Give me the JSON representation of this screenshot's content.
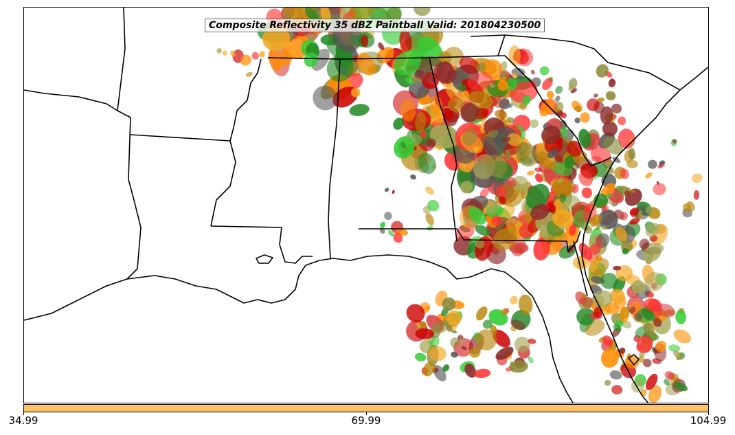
{
  "title": "Composite Reflectivity 35 dBZ Paintball Valid: 201804230500",
  "colorbar": {
    "color": "#ffc266",
    "ticks": [
      "34.99",
      "69.99",
      "104.99"
    ]
  },
  "member_colors": [
    "#ff3333",
    "#cc0000",
    "#ff8c00",
    "#f5a623",
    "#33cc33",
    "#228822",
    "#8b2c2c",
    "#8a8a3a",
    "#555555",
    "#b8860b",
    "#a8a85a",
    "#d84040"
  ]
}
